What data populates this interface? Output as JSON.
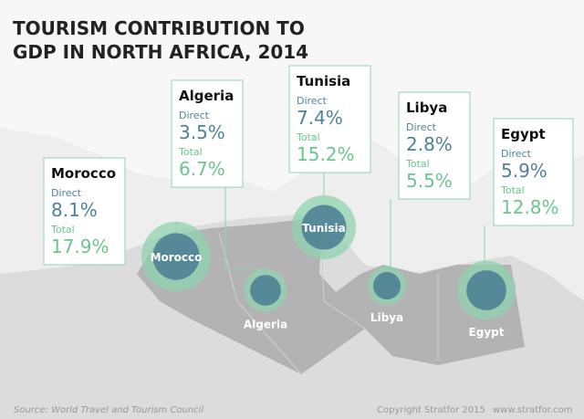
{
  "title": [
    "TOURISM CONTRIBUTION TO",
    "GDP IN NORTH AFRICA, 2014"
  ],
  "countries": [
    {
      "name": "Morocco",
      "direct_label": "Direct",
      "direct": "8.1%",
      "total_label": "Total",
      "total": "17.9%",
      "map_label": "Morocco"
    },
    {
      "name": "Algeria",
      "direct_label": "Direct",
      "direct": "3.5%",
      "total_label": "Total",
      "total": "6.7%",
      "map_label": "Algeria"
    },
    {
      "name": "Tunisia",
      "direct_label": "Direct",
      "direct": "7.4%",
      "total_label": "Total",
      "total": "15.2%",
      "map_label": "Tunisia"
    },
    {
      "name": "Libya",
      "direct_label": "Direct",
      "direct": "2.8%",
      "total_label": "Total",
      "total": "5.5%",
      "map_label": "Libya"
    },
    {
      "name": "Egypt",
      "direct_label": "Direct",
      "direct": "5.9%",
      "total_label": "Total",
      "total": "12.8%",
      "map_label": "Egypt"
    }
  ],
  "source": "Source: World Travel and Tourism Council",
  "copyright": "Copyright Stratfor 2015",
  "url": "www.stratfor.com"
}
